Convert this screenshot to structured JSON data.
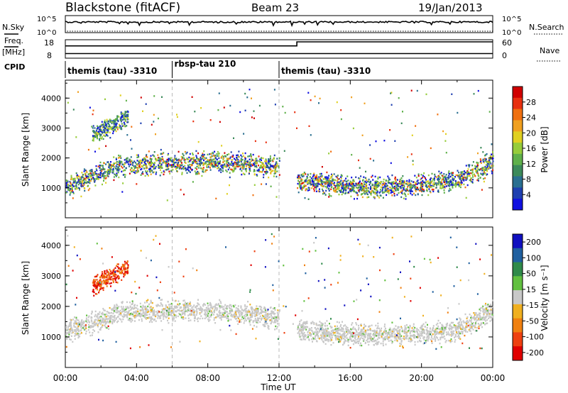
{
  "header": {
    "site": "Blackstone (fitACF)",
    "beam": "Beam 23",
    "date": "19/Jan/2013"
  },
  "ribbon": {
    "nsky_label": "N.Sky",
    "nsearch_label": "N.Search",
    "log_top": "10^5",
    "log_bottom": "10^0",
    "freq_label": "Freq.",
    "freq_unit": "[MHz]",
    "freq_ticks": [
      "18",
      "8"
    ],
    "nave_label": "Nave",
    "nave_ticks": [
      "60",
      "0"
    ],
    "cpid_label": "CPID",
    "cpid_segments": [
      {
        "label": "themis (tau) -3310",
        "start_h": 0,
        "end_h": 6
      },
      {
        "label": "rbsp-tau 210",
        "start_h": 6,
        "end_h": 12
      },
      {
        "label": "themis (tau) -3310",
        "start_h": 12,
        "end_h": 24
      }
    ],
    "freq_mhz": 10.5,
    "nave_steps": [
      {
        "start_h": 0,
        "end_h": 13,
        "value": 40
      },
      {
        "start_h": 13,
        "end_h": 24,
        "value": 53
      }
    ]
  },
  "chart_data": [
    {
      "type": "heatmap",
      "title": "",
      "ylabel": "Slant Range [km]",
      "xlabel": "",
      "xlim_hours": [
        0,
        24
      ],
      "ylim": [
        0,
        4600
      ],
      "yticks": [
        "1000",
        "2000",
        "3000",
        "4000"
      ],
      "colorbar": {
        "label": "Power [dB]",
        "ticks": [
          "4",
          "8",
          "12",
          "16",
          "20",
          "24",
          "28"
        ],
        "colors": [
          "#1010e0",
          "#1e3fb0",
          "#2a6f90",
          "#3c8a5a",
          "#5fb04a",
          "#96cc3a",
          "#e0d020",
          "#f0a020",
          "#f07010",
          "#e83010",
          "#d00000"
        ]
      },
      "bands": [
        {
          "name": "main_ionospheric",
          "time_h": [
            0,
            3,
            6,
            9,
            12
          ],
          "range_km": [
            1050,
            1750,
            1850,
            1900,
            1700
          ],
          "level": "high"
        },
        {
          "name": "morning_high_patch",
          "time_h": [
            1.5,
            3.5
          ],
          "range_km": [
            2800,
            3400
          ],
          "level": "medium"
        },
        {
          "name": "afternoon_band",
          "time_h": [
            13,
            16,
            19,
            22,
            24
          ],
          "range_km": [
            1300,
            1050,
            1050,
            1300,
            1900
          ],
          "level": "high"
        }
      ]
    },
    {
      "type": "heatmap",
      "title": "",
      "ylabel": "Slant Range [km]",
      "xlabel": "Time UT",
      "xlim_hours": [
        0,
        24
      ],
      "ylim": [
        0,
        4600
      ],
      "yticks": [
        "1000",
        "2000",
        "3000",
        "4000"
      ],
      "xticks": [
        "00:00",
        "04:00",
        "08:00",
        "12:00",
        "16:00",
        "20:00",
        "00:00"
      ],
      "colorbar": {
        "label": "Velocity [m s⁻¹]",
        "ticks": [
          "200",
          "100",
          "50",
          "15",
          "-15",
          "-50",
          "-100",
          "-200"
        ],
        "colors": [
          "#1010c0",
          "#2060a0",
          "#2f8a4a",
          "#62c040",
          "#c8c8c8",
          "#f0b020",
          "#f08010",
          "#ee4010",
          "#e00000"
        ]
      },
      "bands": [
        {
          "name": "ground_scatter_grey",
          "time_h": [
            0,
            3,
            6,
            9,
            12
          ],
          "range_km": [
            1200,
            1800,
            1900,
            1850,
            1650
          ],
          "level": "grey"
        },
        {
          "name": "afternoon_grey",
          "time_h": [
            13,
            16,
            19,
            22,
            24
          ],
          "range_km": [
            1250,
            1100,
            1100,
            1250,
            1900
          ],
          "level": "grey"
        },
        {
          "name": "morning_red_patch",
          "time_h": [
            1.5,
            3.5
          ],
          "range_km": [
            2700,
            3300
          ],
          "level": "negative"
        }
      ]
    }
  ],
  "axes": {
    "xlabel": "Time UT"
  }
}
